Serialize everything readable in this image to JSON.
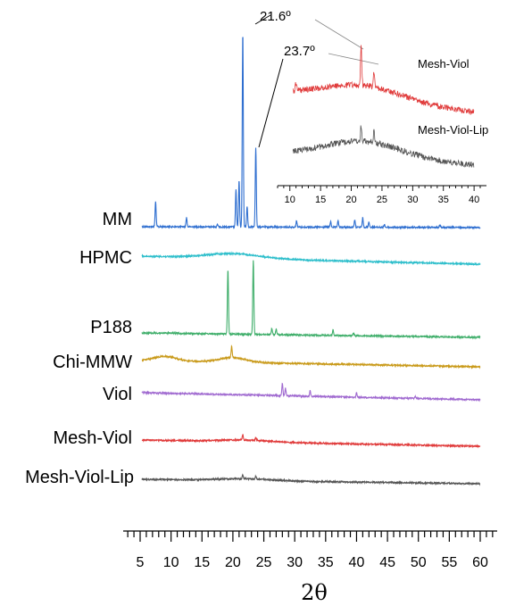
{
  "chart_data": {
    "type": "line",
    "title": "",
    "xlabel": "2θ",
    "ylabel": "",
    "xlim": [
      3,
      62
    ],
    "x_ticks": [
      5,
      10,
      15,
      20,
      25,
      30,
      35,
      40,
      45,
      50,
      55,
      60
    ],
    "grid": false,
    "legend": "none",
    "series": [
      {
        "name": "MM",
        "color": "#2f6fd0",
        "peaks": [
          {
            "x": 7.5,
            "h": 0.27
          },
          {
            "x": 12.5,
            "h": 0.1
          },
          {
            "x": 17.5,
            "h": 0.03
          },
          {
            "x": 20.5,
            "h": 0.4
          },
          {
            "x": 21.0,
            "h": 0.5
          },
          {
            "x": 21.6,
            "h": 2.1
          },
          {
            "x": 22.3,
            "h": 0.22
          },
          {
            "x": 23.7,
            "h": 0.85
          },
          {
            "x": 30.3,
            "h": 0.07
          },
          {
            "x": 35.8,
            "h": 0.06
          },
          {
            "x": 37.0,
            "h": 0.07
          },
          {
            "x": 39.7,
            "h": 0.08
          },
          {
            "x": 41.0,
            "h": 0.1
          },
          {
            "x": 42.0,
            "h": 0.06
          },
          {
            "x": 44.5,
            "h": 0.03
          },
          {
            "x": 53.5,
            "h": 0.03
          }
        ],
        "humps": []
      },
      {
        "name": "HPMC",
        "color": "#2dbecb",
        "peaks": [],
        "humps": [
          {
            "x": 20.0,
            "h": 0.05,
            "w": 6
          }
        ]
      },
      {
        "name": "P188",
        "color": "#3fae6a",
        "peaks": [
          {
            "x": 19.2,
            "h": 0.7
          },
          {
            "x": 23.3,
            "h": 0.8
          },
          {
            "x": 26.3,
            "h": 0.07
          },
          {
            "x": 27.0,
            "h": 0.06
          },
          {
            "x": 36.2,
            "h": 0.06
          },
          {
            "x": 39.5,
            "h": 0.03
          }
        ],
        "humps": []
      },
      {
        "name": "Chi-MMW",
        "color": "#c99a1a",
        "peaks": [
          {
            "x": 19.8,
            "h": 0.12
          }
        ],
        "humps": [
          {
            "x": 9.0,
            "h": 0.05,
            "w": 2.5
          },
          {
            "x": 20.0,
            "h": 0.05,
            "w": 3
          }
        ]
      },
      {
        "name": "Viol",
        "color": "#a06ad0",
        "peaks": [
          {
            "x": 28.0,
            "h": 0.13
          },
          {
            "x": 28.5,
            "h": 0.08
          },
          {
            "x": 32.5,
            "h": 0.06
          },
          {
            "x": 40.0,
            "h": 0.05
          },
          {
            "x": 49.5,
            "h": 0.02
          }
        ],
        "humps": []
      },
      {
        "name": "Mesh-Viol",
        "color": "#e03a3a",
        "peaks": [
          {
            "x": 21.6,
            "h": 0.06
          },
          {
            "x": 23.7,
            "h": 0.03
          }
        ],
        "humps": [
          {
            "x": 22.0,
            "h": 0.02,
            "w": 6
          }
        ]
      },
      {
        "name": "Mesh-Viol-Lip",
        "color": "#555555",
        "peaks": [
          {
            "x": 21.6,
            "h": 0.04
          },
          {
            "x": 23.7,
            "h": 0.03
          }
        ],
        "humps": [
          {
            "x": 22.0,
            "h": 0.02,
            "w": 6
          }
        ]
      }
    ],
    "annotations": [
      {
        "text": "21.6º",
        "x": 21.6
      },
      {
        "text": "23.7º",
        "x": 23.7
      }
    ],
    "inset": {
      "xlim": [
        8,
        41
      ],
      "x_ticks": [
        10,
        15,
        20,
        25,
        30,
        35,
        40
      ],
      "series": [
        {
          "name": "Mesh-Viol",
          "color": "#e03a3a",
          "hump": {
            "x": 22,
            "h": 0.55,
            "w": 9
          },
          "peaks": [
            {
              "x": 11.0,
              "h": 0.25
            },
            {
              "x": 21.6,
              "h": 1.3
            },
            {
              "x": 23.7,
              "h": 0.55
            }
          ]
        },
        {
          "name": "Mesh-Viol-Lip",
          "color": "#555555",
          "hump": {
            "x": 22,
            "h": 0.6,
            "w": 9
          },
          "peaks": [
            {
              "x": 21.6,
              "h": 0.55
            },
            {
              "x": 23.7,
              "h": 0.45
            }
          ]
        }
      ]
    }
  }
}
